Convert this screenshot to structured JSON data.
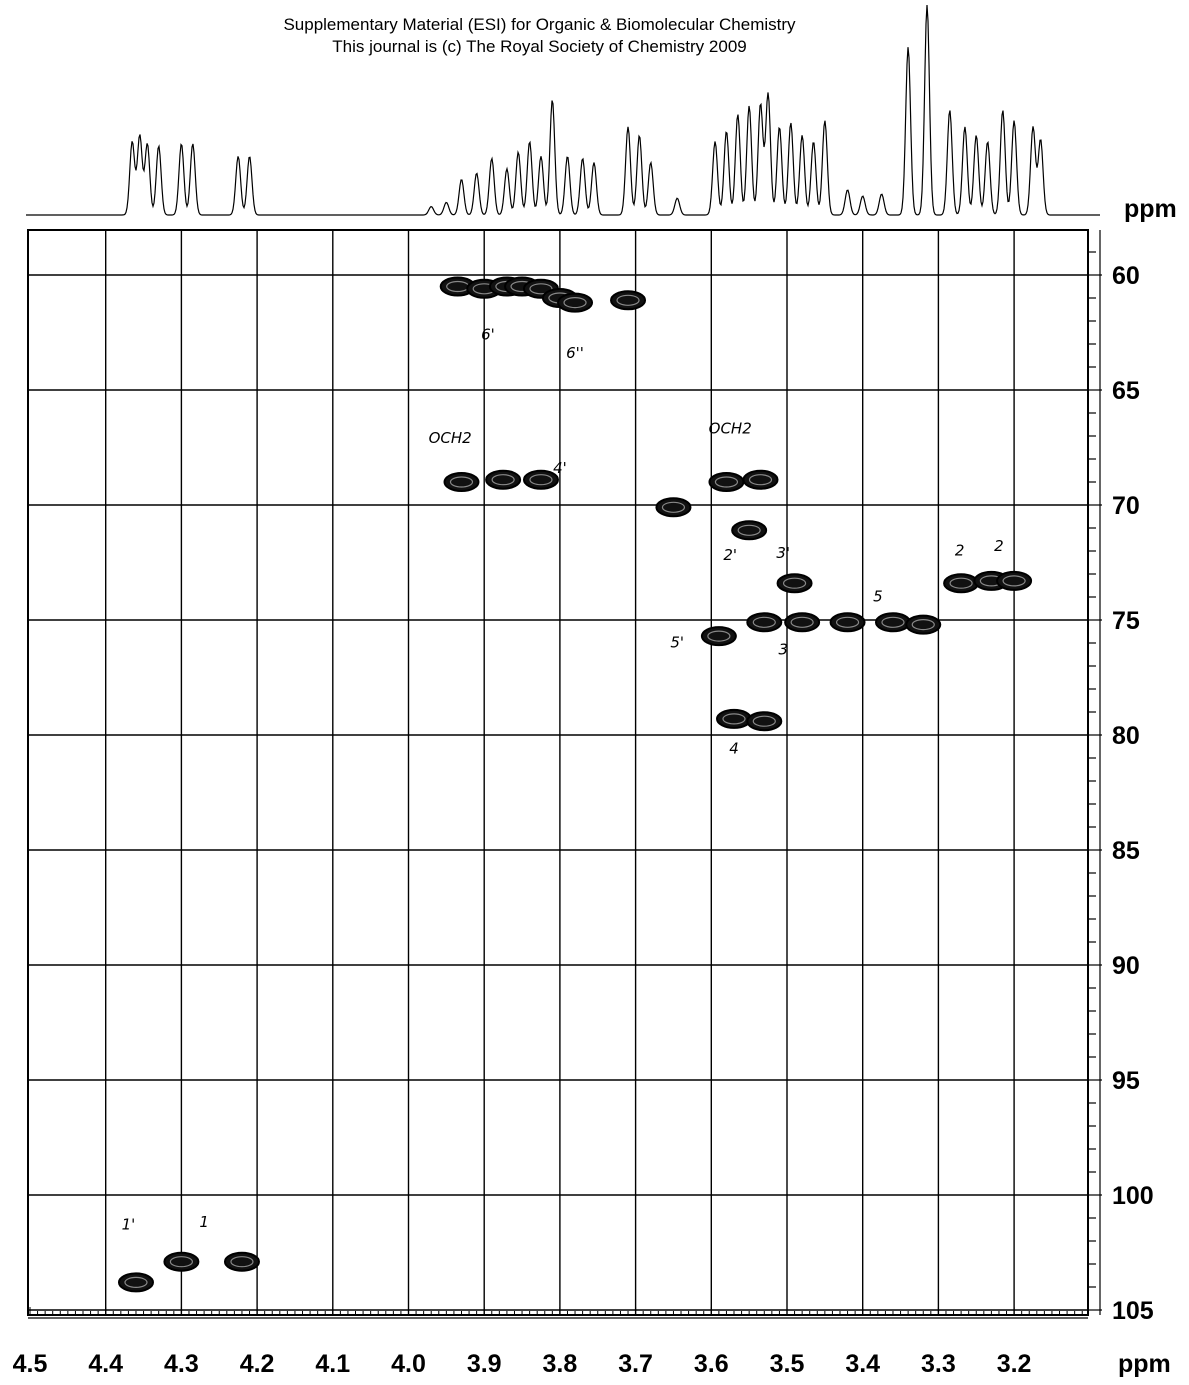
{
  "header": {
    "line1": "Supplementary Material (ESI) for Organic & Biomolecular Chemistry",
    "line2": "This journal is (c) The Royal Society of Chemistry 2009"
  },
  "chart_data": {
    "type": "heatmap",
    "title": "",
    "xlabel": "ppm",
    "ylabel": "ppm",
    "f1_unit_label": "ppm",
    "f2_unit_label": "ppm",
    "xlim": [
      4.5,
      3.1
    ],
    "ylim": [
      59,
      105.5
    ],
    "x_ticks": [
      "4.5",
      "4.4",
      "4.3",
      "4.2",
      "4.1",
      "4.0",
      "3.9",
      "3.8",
      "3.7",
      "3.6",
      "3.5",
      "3.4",
      "3.3",
      "3.2"
    ],
    "y_ticks": [
      "60",
      "65",
      "70",
      "75",
      "80",
      "85",
      "90",
      "95",
      "100",
      "105"
    ],
    "grid": true,
    "cross_peaks": [
      {
        "x": 3.935,
        "y": 60.5
      },
      {
        "x": 3.9,
        "y": 60.6
      },
      {
        "x": 3.87,
        "y": 60.5
      },
      {
        "x": 3.85,
        "y": 60.5
      },
      {
        "x": 3.825,
        "y": 60.6
      },
      {
        "x": 3.8,
        "y": 61.0
      },
      {
        "x": 3.78,
        "y": 61.2
      },
      {
        "x": 3.71,
        "y": 61.1
      },
      {
        "x": 3.93,
        "y": 69.0
      },
      {
        "x": 3.875,
        "y": 68.9
      },
      {
        "x": 3.825,
        "y": 68.9
      },
      {
        "x": 3.58,
        "y": 69.0
      },
      {
        "x": 3.535,
        "y": 68.9
      },
      {
        "x": 3.65,
        "y": 70.1
      },
      {
        "x": 3.55,
        "y": 71.1
      },
      {
        "x": 3.49,
        "y": 73.4
      },
      {
        "x": 3.27,
        "y": 73.4
      },
      {
        "x": 3.23,
        "y": 73.3
      },
      {
        "x": 3.2,
        "y": 73.3
      },
      {
        "x": 3.59,
        "y": 75.7
      },
      {
        "x": 3.53,
        "y": 75.1
      },
      {
        "x": 3.48,
        "y": 75.1
      },
      {
        "x": 3.42,
        "y": 75.1
      },
      {
        "x": 3.36,
        "y": 75.1
      },
      {
        "x": 3.32,
        "y": 75.2
      },
      {
        "x": 3.57,
        "y": 79.3
      },
      {
        "x": 3.53,
        "y": 79.4
      },
      {
        "x": 4.36,
        "y": 103.8
      },
      {
        "x": 4.3,
        "y": 102.9
      },
      {
        "x": 4.22,
        "y": 102.9
      }
    ],
    "annotations": [
      "6'",
      "6''",
      "OCH2",
      "OCH2",
      "4'",
      "2'",
      "3'",
      "2",
      "2",
      "5",
      "5'",
      "3",
      "4",
      "1'",
      "1"
    ],
    "projection_peaks": [
      {
        "x": 4.365,
        "h": 0.35
      },
      {
        "x": 4.355,
        "h": 0.38
      },
      {
        "x": 4.345,
        "h": 0.34
      },
      {
        "x": 4.33,
        "h": 0.33
      },
      {
        "x": 4.3,
        "h": 0.34
      },
      {
        "x": 4.285,
        "h": 0.34
      },
      {
        "x": 4.225,
        "h": 0.28
      },
      {
        "x": 4.21,
        "h": 0.28
      },
      {
        "x": 3.97,
        "h": 0.04
      },
      {
        "x": 3.95,
        "h": 0.06
      },
      {
        "x": 3.93,
        "h": 0.17
      },
      {
        "x": 3.91,
        "h": 0.2
      },
      {
        "x": 3.89,
        "h": 0.27
      },
      {
        "x": 3.87,
        "h": 0.22
      },
      {
        "x": 3.855,
        "h": 0.3
      },
      {
        "x": 3.84,
        "h": 0.35
      },
      {
        "x": 3.825,
        "h": 0.28
      },
      {
        "x": 3.81,
        "h": 0.55
      },
      {
        "x": 3.79,
        "h": 0.28
      },
      {
        "x": 3.77,
        "h": 0.27
      },
      {
        "x": 3.755,
        "h": 0.25
      },
      {
        "x": 3.71,
        "h": 0.42
      },
      {
        "x": 3.695,
        "h": 0.38
      },
      {
        "x": 3.68,
        "h": 0.25
      },
      {
        "x": 3.645,
        "h": 0.08
      },
      {
        "x": 3.595,
        "h": 0.35
      },
      {
        "x": 3.58,
        "h": 0.4
      },
      {
        "x": 3.565,
        "h": 0.48
      },
      {
        "x": 3.55,
        "h": 0.52
      },
      {
        "x": 3.535,
        "h": 0.53
      },
      {
        "x": 3.525,
        "h": 0.58
      },
      {
        "x": 3.51,
        "h": 0.42
      },
      {
        "x": 3.495,
        "h": 0.44
      },
      {
        "x": 3.48,
        "h": 0.38
      },
      {
        "x": 3.465,
        "h": 0.35
      },
      {
        "x": 3.45,
        "h": 0.45
      },
      {
        "x": 3.42,
        "h": 0.12
      },
      {
        "x": 3.4,
        "h": 0.09
      },
      {
        "x": 3.375,
        "h": 0.1
      },
      {
        "x": 3.34,
        "h": 0.8
      },
      {
        "x": 3.315,
        "h": 1.0
      },
      {
        "x": 3.285,
        "h": 0.5
      },
      {
        "x": 3.265,
        "h": 0.42
      },
      {
        "x": 3.25,
        "h": 0.38
      },
      {
        "x": 3.235,
        "h": 0.35
      },
      {
        "x": 3.215,
        "h": 0.5
      },
      {
        "x": 3.2,
        "h": 0.45
      },
      {
        "x": 3.175,
        "h": 0.42
      },
      {
        "x": 3.165,
        "h": 0.36
      }
    ]
  }
}
